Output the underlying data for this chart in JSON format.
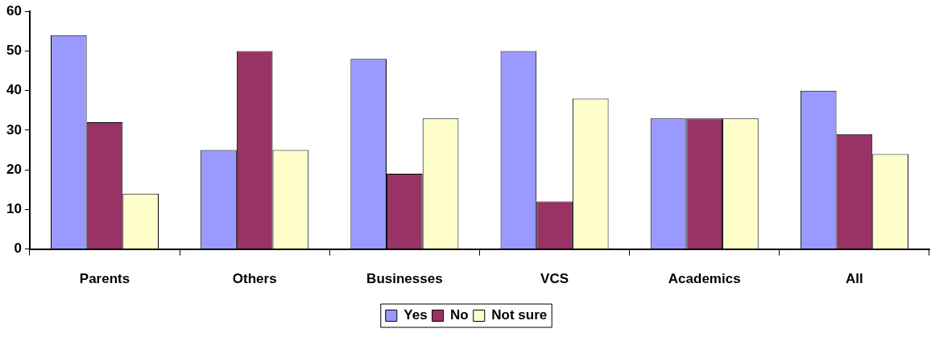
{
  "chart_data": {
    "type": "bar",
    "categories": [
      "Parents",
      "Others",
      "Businesses",
      "VCS",
      "Academics",
      "All"
    ],
    "series": [
      {
        "name": "Yes",
        "color": "#9999ff",
        "values": [
          54,
          25,
          48,
          50,
          33,
          40
        ]
      },
      {
        "name": "No",
        "color": "#993366",
        "values": [
          32,
          50,
          19,
          12,
          33,
          29
        ]
      },
      {
        "name": "Not sure",
        "color": "#ffffcc",
        "values": [
          14,
          25,
          33,
          38,
          33,
          24
        ]
      }
    ],
    "ylim": [
      0,
      60
    ],
    "yticks": [
      0,
      10,
      20,
      30,
      40,
      50,
      60
    ],
    "grid": false,
    "legend": "bottom"
  }
}
